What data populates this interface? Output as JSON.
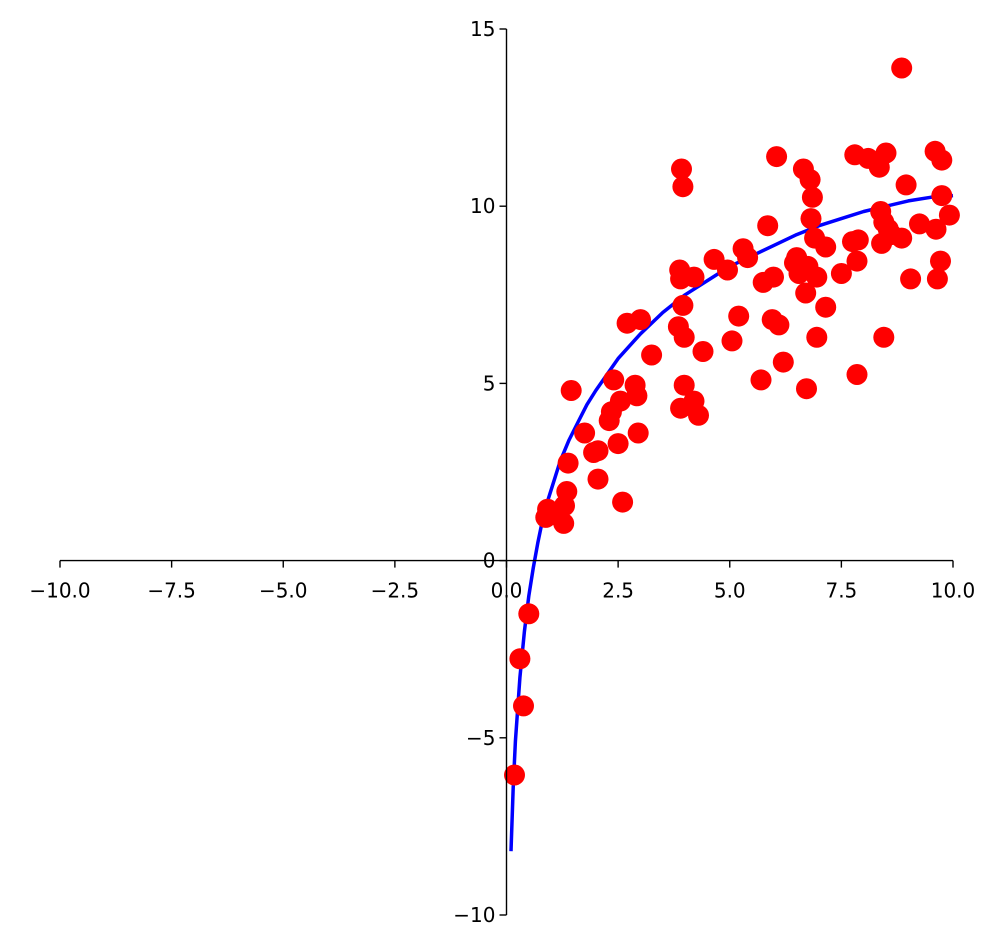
{
  "chart_data": {
    "type": "scatter",
    "title": "",
    "xlabel": "",
    "ylabel": "",
    "xlim": [
      -10,
      10
    ],
    "ylim": [
      -10,
      15
    ],
    "spines": "centered at origin",
    "grid": false,
    "legend": "none",
    "x_ticks": [
      -10,
      -7.5,
      -5,
      -2.5,
      0,
      2.5,
      5,
      7.5,
      10
    ],
    "x_tick_labels": [
      "−10.0",
      "−7.5",
      "−5.0",
      "−2.5",
      "0.0",
      "2.5",
      "5.0",
      "7.5",
      "10.0"
    ],
    "y_ticks": [
      -10,
      -5,
      0,
      5,
      10,
      15
    ],
    "y_tick_labels": [
      "−10",
      "−5",
      "0",
      "5",
      "10",
      "15"
    ],
    "series": [
      {
        "kind": "scatter",
        "color": "#ff0000",
        "points": [
          [
            0.18,
            -6.05
          ],
          [
            0.3,
            -2.77
          ],
          [
            0.38,
            -4.1
          ],
          [
            0.5,
            -1.5
          ],
          [
            0.88,
            1.22
          ],
          [
            0.92,
            1.45
          ],
          [
            1.05,
            1.3
          ],
          [
            1.28,
            1.05
          ],
          [
            1.3,
            1.55
          ],
          [
            1.35,
            1.95
          ],
          [
            1.38,
            2.75
          ],
          [
            1.45,
            4.8
          ],
          [
            1.75,
            3.6
          ],
          [
            1.95,
            3.05
          ],
          [
            2.05,
            3.1
          ],
          [
            2.05,
            2.3
          ],
          [
            2.3,
            3.95
          ],
          [
            2.35,
            4.2
          ],
          [
            2.4,
            5.1
          ],
          [
            2.5,
            3.3
          ],
          [
            2.55,
            4.5
          ],
          [
            2.6,
            1.65
          ],
          [
            2.7,
            6.7
          ],
          [
            2.88,
            4.95
          ],
          [
            2.92,
            4.65
          ],
          [
            2.95,
            3.6
          ],
          [
            3.0,
            6.8
          ],
          [
            3.25,
            5.8
          ],
          [
            3.85,
            6.6
          ],
          [
            3.88,
            8.2
          ],
          [
            3.9,
            7.95
          ],
          [
            3.9,
            4.3
          ],
          [
            3.92,
            11.05
          ],
          [
            3.95,
            10.55
          ],
          [
            3.95,
            7.2
          ],
          [
            3.98,
            6.3
          ],
          [
            3.98,
            4.95
          ],
          [
            4.2,
            8.0
          ],
          [
            4.2,
            4.5
          ],
          [
            4.3,
            4.1
          ],
          [
            4.4,
            5.9
          ],
          [
            4.65,
            8.5
          ],
          [
            4.95,
            8.2
          ],
          [
            5.05,
            6.2
          ],
          [
            5.2,
            6.9
          ],
          [
            5.3,
            8.8
          ],
          [
            5.4,
            8.55
          ],
          [
            5.7,
            5.1
          ],
          [
            5.75,
            7.85
          ],
          [
            5.85,
            9.45
          ],
          [
            5.95,
            6.8
          ],
          [
            5.98,
            8.0
          ],
          [
            6.05,
            11.4
          ],
          [
            6.1,
            6.65
          ],
          [
            6.2,
            5.6
          ],
          [
            6.45,
            8.4
          ],
          [
            6.5,
            8.55
          ],
          [
            6.55,
            8.1
          ],
          [
            6.65,
            11.05
          ],
          [
            6.7,
            7.55
          ],
          [
            6.72,
            4.85
          ],
          [
            6.75,
            8.3
          ],
          [
            6.8,
            10.75
          ],
          [
            6.82,
            9.65
          ],
          [
            6.85,
            10.25
          ],
          [
            6.9,
            9.1
          ],
          [
            6.95,
            8.0
          ],
          [
            6.95,
            6.3
          ],
          [
            7.15,
            8.85
          ],
          [
            7.15,
            7.15
          ],
          [
            7.5,
            8.1
          ],
          [
            7.75,
            9.0
          ],
          [
            7.8,
            11.45
          ],
          [
            7.85,
            8.45
          ],
          [
            7.85,
            5.25
          ],
          [
            7.88,
            9.05
          ],
          [
            8.1,
            11.35
          ],
          [
            8.35,
            11.1
          ],
          [
            8.38,
            9.85
          ],
          [
            8.4,
            8.95
          ],
          [
            8.45,
            9.55
          ],
          [
            8.45,
            6.3
          ],
          [
            8.5,
            11.5
          ],
          [
            8.55,
            9.35
          ],
          [
            8.62,
            9.2
          ],
          [
            8.85,
            13.9
          ],
          [
            8.85,
            9.1
          ],
          [
            8.95,
            10.6
          ],
          [
            9.05,
            7.95
          ],
          [
            9.25,
            9.5
          ],
          [
            9.6,
            11.55
          ],
          [
            9.62,
            9.35
          ],
          [
            9.65,
            7.95
          ],
          [
            9.72,
            8.45
          ],
          [
            9.75,
            11.3
          ],
          [
            9.75,
            10.3
          ],
          [
            9.92,
            9.75
          ]
        ]
      },
      {
        "kind": "line",
        "color": "#0000ff",
        "x": [
          0.1,
          0.15,
          0.2,
          0.3,
          0.4,
          0.5,
          0.6,
          0.7,
          0.8,
          0.9,
          1.0,
          1.2,
          1.4,
          1.6,
          1.8,
          2.0,
          2.5,
          3.0,
          3.5,
          4.0,
          4.5,
          5.0,
          5.5,
          6.0,
          6.5,
          7.0,
          7.5,
          8.0,
          8.5,
          9.0,
          9.5,
          10.0
        ],
        "y": [
          -8.2,
          -6.4,
          -5.1,
          -3.3,
          -2.0,
          -1.0,
          -0.2,
          0.5,
          1.1,
          1.6,
          2.0,
          2.8,
          3.4,
          3.9,
          4.4,
          4.8,
          5.7,
          6.4,
          7.0,
          7.5,
          7.9,
          8.3,
          8.6,
          8.9,
          9.2,
          9.45,
          9.65,
          9.85,
          10.0,
          10.15,
          10.25,
          10.3
        ]
      }
    ]
  }
}
